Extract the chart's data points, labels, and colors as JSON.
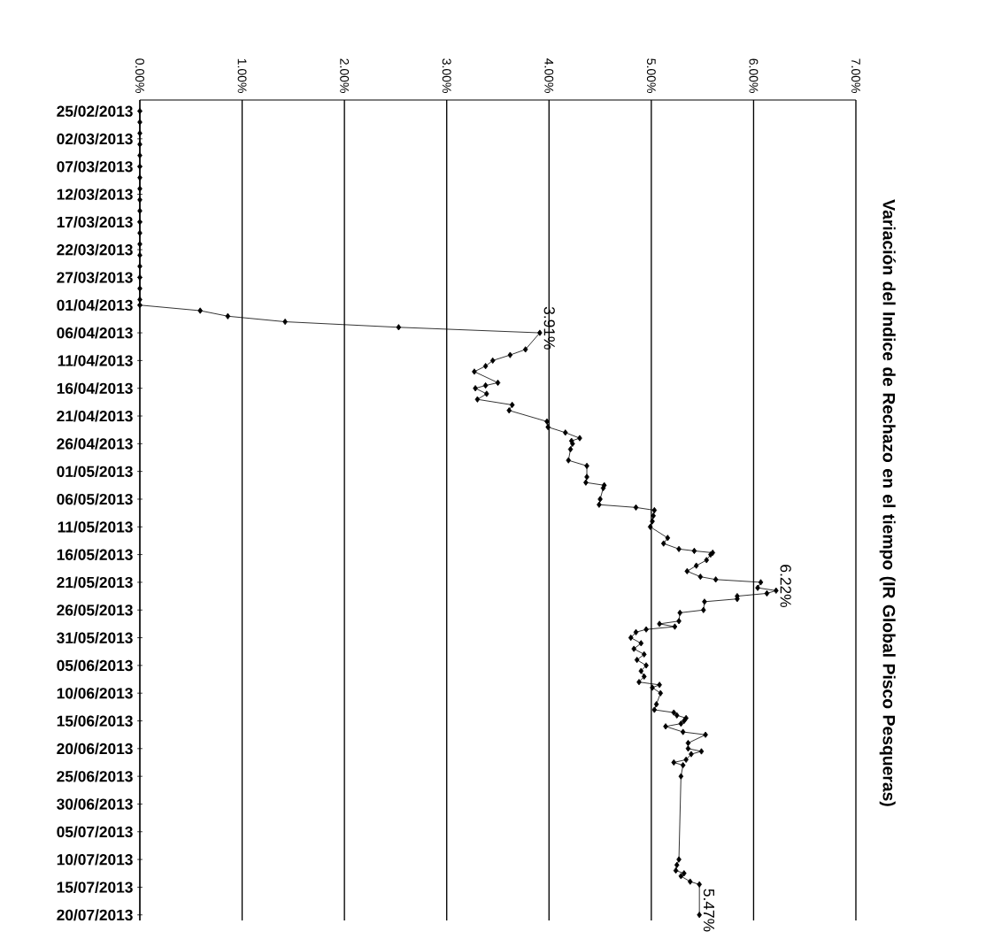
{
  "chart_data": {
    "type": "line",
    "title": "Variación del Indice de Rechazo en el tiempo (IR Global Pisco Pesqueras)",
    "x": [
      "2013-02-25",
      "2013-02-27",
      "2013-03-01",
      "2013-03-03",
      "2013-03-05",
      "2013-03-07",
      "2013-03-09",
      "2013-03-11",
      "2013-03-13",
      "2013-03-15",
      "2013-03-17",
      "2013-03-19",
      "2013-03-21",
      "2013-03-23",
      "2013-03-25",
      "2013-03-27",
      "2013-03-29",
      "2013-03-31",
      "2013-04-01",
      "2013-04-02",
      "2013-04-03",
      "2013-04-04",
      "2013-04-05",
      "2013-04-06",
      "2013-04-09",
      "2013-04-10",
      "2013-04-11",
      "2013-04-12",
      "2013-04-13",
      "2013-04-15",
      "2013-04-15T12:00",
      "2013-04-16",
      "2013-04-17",
      "2013-04-18",
      "2013-04-19",
      "2013-04-20",
      "2013-04-22",
      "2013-04-23",
      "2013-04-24",
      "2013-04-25",
      "2013-04-25T12:00",
      "2013-04-26",
      "2013-04-27",
      "2013-04-29",
      "2013-04-30",
      "2013-05-02",
      "2013-05-03",
      "2013-05-03T12:00",
      "2013-05-04",
      "2013-05-06",
      "2013-05-07",
      "2013-05-07T12:00",
      "2013-05-08",
      "2013-05-09",
      "2013-05-10",
      "2013-05-11",
      "2013-05-13",
      "2013-05-14",
      "2013-05-15",
      "2013-05-15T08:00",
      "2013-05-15T16:00",
      "2013-05-16",
      "2013-05-17",
      "2013-05-18",
      "2013-05-19",
      "2013-05-20",
      "2013-05-20T12:00",
      "2013-05-21",
      "2013-05-22",
      "2013-05-22T12:00",
      "2013-05-23",
      "2013-05-23T12:00",
      "2013-05-24",
      "2013-05-24T12:00",
      "2013-05-26",
      "2013-05-26T12:00",
      "2013-05-28",
      "2013-05-28T12:00",
      "2013-05-29",
      "2013-05-29T12:00",
      "2013-05-30",
      "2013-05-31",
      "2013-06-01",
      "2013-06-02",
      "2013-06-03",
      "2013-06-04",
      "2013-06-05",
      "2013-06-06",
      "2013-06-07",
      "2013-06-08",
      "2013-06-08T12:00",
      "2013-06-09",
      "2013-06-10",
      "2013-06-12",
      "2013-06-13",
      "2013-06-13T12:00",
      "2013-06-14",
      "2013-06-14T12:00",
      "2013-06-15",
      "2013-06-15T12:00",
      "2013-06-16",
      "2013-06-17",
      "2013-06-17T12:00",
      "2013-06-19",
      "2013-06-20",
      "2013-06-20T12:00",
      "2013-06-21",
      "2013-06-22",
      "2013-06-22T12:00",
      "2013-06-23",
      "2013-06-25",
      "2013-07-10",
      "2013-07-11",
      "2013-07-12",
      "2013-07-12T12:00",
      "2013-07-13",
      "2013-07-14",
      "2013-07-14T12:00",
      "2013-07-20"
    ],
    "series": [
      {
        "color": "#000000",
        "values": [
          0,
          0,
          0,
          0,
          0,
          0,
          0,
          0,
          0,
          0,
          0,
          0,
          0,
          0,
          0,
          0,
          0,
          0,
          0,
          0.59,
          0.86,
          1.42,
          2.53,
          3.91,
          3.77,
          3.62,
          3.45,
          3.38,
          3.27,
          3.5,
          3.38,
          3.28,
          3.39,
          3.3,
          3.64,
          3.61,
          3.98,
          3.99,
          4.16,
          4.3,
          4.22,
          4.23,
          4.21,
          4.19,
          4.37,
          4.37,
          4.36,
          4.54,
          4.53,
          4.5,
          4.49,
          4.85,
          5.03,
          5.02,
          5.01,
          4.99,
          5.16,
          5.12,
          5.27,
          5.42,
          5.6,
          5.58,
          5.54,
          5.44,
          5.35,
          5.48,
          5.63,
          6.07,
          6.04,
          6.22,
          6.13,
          5.84,
          5.84,
          5.52,
          5.51,
          5.28,
          5.27,
          5.08,
          5.23,
          4.95,
          4.85,
          4.8,
          4.9,
          4.83,
          4.93,
          4.86,
          4.95,
          4.9,
          4.93,
          4.88,
          5.08,
          5.01,
          5.09,
          5.05,
          5.03,
          5.22,
          5.25,
          5.34,
          5.32,
          5.29,
          5.14,
          5.31,
          5.53,
          5.36,
          5.36,
          5.49,
          5.39,
          5.34,
          5.22,
          5.31,
          5.29,
          5.27,
          5.25,
          5.24,
          5.32,
          5.29,
          5.38,
          5.47,
          5.47
        ]
      }
    ],
    "orientation": "horizontal",
    "ylim": [
      "2013-07-21",
      "2013-02-23"
    ],
    "yticks": [
      {
        "value": "2013-02-25",
        "label": "25/02/2013"
      },
      {
        "value": "2013-03-02",
        "label": "02/03/2013"
      },
      {
        "value": "2013-03-07",
        "label": "07/03/2013"
      },
      {
        "value": "2013-03-12",
        "label": "12/03/2013"
      },
      {
        "value": "2013-03-17",
        "label": "17/03/2013"
      },
      {
        "value": "2013-03-22",
        "label": "22/03/2013"
      },
      {
        "value": "2013-03-27",
        "label": "27/03/2013"
      },
      {
        "value": "2013-04-01",
        "label": "01/04/2013"
      },
      {
        "value": "2013-04-06",
        "label": "06/04/2013"
      },
      {
        "value": "2013-04-11",
        "label": "11/04/2013"
      },
      {
        "value": "2013-04-16",
        "label": "16/04/2013"
      },
      {
        "value": "2013-04-21",
        "label": "21/04/2013"
      },
      {
        "value": "2013-04-26",
        "label": "26/04/2013"
      },
      {
        "value": "2013-05-01",
        "label": "01/05/2013"
      },
      {
        "value": "2013-05-06",
        "label": "06/05/2013"
      },
      {
        "value": "2013-05-11",
        "label": "11/05/2013"
      },
      {
        "value": "2013-05-16",
        "label": "16/05/2013"
      },
      {
        "value": "2013-05-21",
        "label": "21/05/2013"
      },
      {
        "value": "2013-05-26",
        "label": "26/05/2013"
      },
      {
        "value": "2013-05-31",
        "label": "31/05/2013"
      },
      {
        "value": "2013-06-05",
        "label": "05/06/2013"
      },
      {
        "value": "2013-06-10",
        "label": "10/06/2013"
      },
      {
        "value": "2013-06-15",
        "label": "15/06/2013"
      },
      {
        "value": "2013-06-20",
        "label": "20/06/2013"
      },
      {
        "value": "2013-06-25",
        "label": "25/06/2013"
      },
      {
        "value": "2013-06-30",
        "label": "30/06/2013"
      },
      {
        "value": "2013-07-05",
        "label": "05/07/2013"
      },
      {
        "value": "2013-07-10",
        "label": "10/07/2013"
      },
      {
        "value": "2013-07-15",
        "label": "15/07/2013"
      },
      {
        "value": "2013-07-20",
        "label": "20/07/2013"
      }
    ],
    "xlim": [
      0,
      7
    ],
    "xticks": [
      {
        "value": 0,
        "label": "0.00%"
      },
      {
        "value": 1,
        "label": "1.00%"
      },
      {
        "value": 2,
        "label": "2.00%"
      },
      {
        "value": 3,
        "label": "3.00%"
      },
      {
        "value": 4,
        "label": "4.00%"
      },
      {
        "value": 5,
        "label": "5.00%"
      },
      {
        "value": 6,
        "label": "6.00%"
      },
      {
        "value": 7,
        "label": "7.00%"
      }
    ],
    "annotations": [
      {
        "text": "3.91%",
        "x": 3.91,
        "y": "2013-04-06"
      },
      {
        "text": "6.22%",
        "x": 6.22,
        "y": "2013-05-22T12:00"
      },
      {
        "text": "5.47%",
        "x": 5.47,
        "y": "2013-07-20"
      }
    ],
    "grid": "x",
    "marker": "diamond",
    "line_style": "solid"
  }
}
